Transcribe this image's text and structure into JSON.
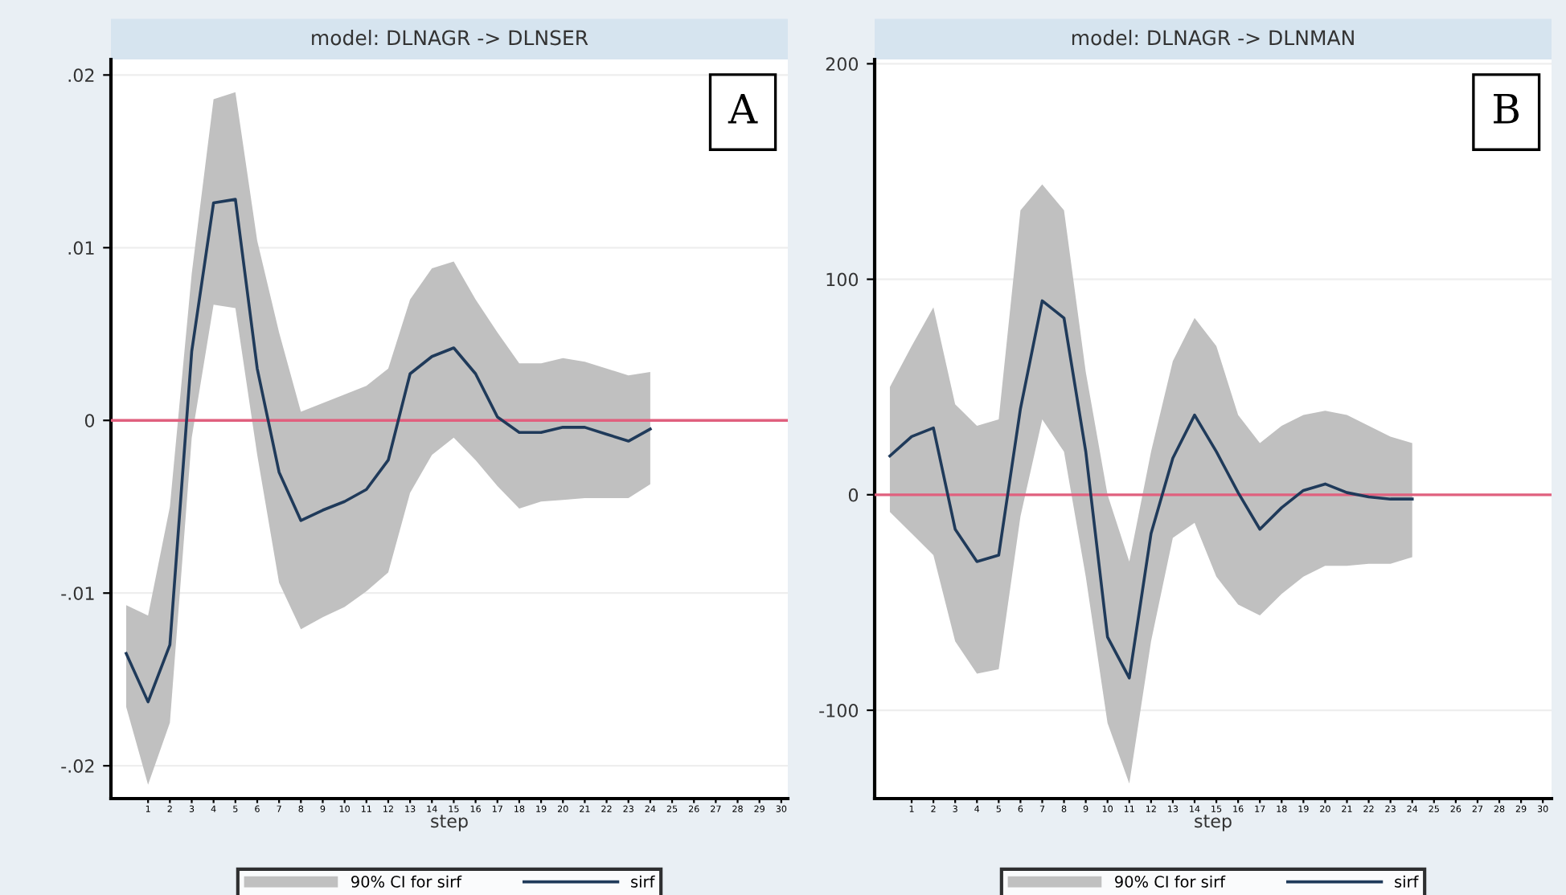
{
  "chart_data": [
    {
      "type": "line",
      "title": "model: DLNAGR -> DLNSER",
      "xlabel": "step",
      "annotations": [
        "A",
        "90% CI for sirf"
      ],
      "x": [
        0,
        1,
        2,
        3,
        4,
        5,
        6,
        7,
        8,
        9,
        10,
        11,
        12,
        13,
        14,
        15,
        16,
        17,
        18,
        19,
        20,
        21,
        22,
        23,
        24
      ],
      "series": [
        {
          "name": "sirf",
          "color": "#1f3a5a",
          "values": [
            -0.0135,
            -0.0163,
            -0.013,
            0.004,
            0.0126,
            0.0128,
            0.003,
            -0.003,
            -0.0058,
            -0.0052,
            -0.0047,
            -0.004,
            -0.0023,
            0.0027,
            0.0037,
            0.0042,
            0.0027,
            0.0002,
            -0.0007,
            -0.0007,
            -0.0004,
            -0.0004,
            -0.0008,
            -0.0012,
            -0.0005
          ],
          "upper": [
            -0.0107,
            -0.0113,
            -0.005,
            0.0085,
            0.0186,
            0.019,
            0.0104,
            0.0051,
            0.0005,
            0.001,
            0.0015,
            0.002,
            0.003,
            0.007,
            0.0088,
            0.0092,
            0.007,
            0.0051,
            0.0033,
            0.0033,
            0.0036,
            0.0034,
            0.003,
            0.0026,
            0.0028
          ],
          "lower": [
            -0.0166,
            -0.0211,
            -0.0175,
            -0.001,
            0.0067,
            0.0065,
            -0.002,
            -0.0094,
            -0.0121,
            -0.0114,
            -0.0108,
            -0.0099,
            -0.0088,
            -0.0042,
            -0.002,
            -0.001,
            -0.0023,
            -0.0038,
            -0.0051,
            -0.0047,
            -0.0046,
            -0.0045,
            -0.0045,
            -0.0045,
            -0.0037
          ]
        }
      ],
      "xlim": [
        -0.7,
        30.3
      ],
      "xticks": [
        1,
        2,
        3,
        4,
        5,
        6,
        7,
        8,
        9,
        10,
        11,
        12,
        13,
        14,
        15,
        16,
        17,
        18,
        19,
        20,
        21,
        22,
        23,
        24,
        25,
        26,
        27,
        28,
        29,
        30
      ],
      "ylim": [
        -0.0219,
        0.0209
      ],
      "yticks": [
        {
          "value": -0.02,
          "label": "-.02"
        },
        {
          "value": -0.01,
          "label": "-.01"
        },
        0,
        {
          "value": 0.01,
          "label": ".01"
        },
        {
          "value": 0.02,
          "label": ".02"
        }
      ],
      "ref_lines": [
        {
          "axis": "y",
          "value": 0,
          "color": "#e0607e"
        }
      ],
      "grid": "y",
      "legend": "bottom"
    },
    {
      "type": "line",
      "title": "model: DLNAGR -> DLNMAN",
      "xlabel": "step",
      "annotations": [
        "B",
        "90% CI for sirf"
      ],
      "x": [
        0,
        1,
        2,
        3,
        4,
        5,
        6,
        7,
        8,
        9,
        10,
        11,
        12,
        13,
        14,
        15,
        16,
        17,
        18,
        19,
        20,
        21,
        22,
        23,
        24
      ],
      "series": [
        {
          "name": "sirf",
          "color": "#1f3a5a",
          "values": [
            18,
            27,
            31,
            -16,
            -31,
            -28,
            40,
            90,
            82,
            20,
            -66,
            -85,
            -18,
            17,
            37,
            20,
            1,
            -16,
            -6,
            2,
            5,
            1,
            -1,
            -2,
            -2
          ],
          "upper": [
            50,
            69,
            87,
            42,
            32,
            35,
            132,
            144,
            132,
            57,
            0,
            -31,
            20,
            62,
            82,
            69,
            37,
            24,
            32,
            37,
            39,
            37,
            32,
            27,
            24
          ],
          "lower": [
            -8,
            -18,
            -28,
            -68,
            -83,
            -81,
            -10,
            35,
            20,
            -38,
            -106,
            -134,
            -68,
            -20,
            -13,
            -38,
            -51,
            -56,
            -46,
            -38,
            -33,
            -33,
            -32,
            -32,
            -29
          ]
        }
      ],
      "xlim": [
        -0.7,
        30.4
      ],
      "xticks": [
        1,
        2,
        3,
        4,
        5,
        6,
        7,
        8,
        9,
        10,
        11,
        12,
        13,
        14,
        15,
        16,
        17,
        18,
        19,
        20,
        21,
        22,
        23,
        24,
        25,
        26,
        27,
        28,
        29,
        30
      ],
      "ylim": [
        -141,
        202
      ],
      "yticks": [
        {
          "value": -100,
          "label": "-100"
        },
        0,
        100,
        200
      ],
      "ref_lines": [
        {
          "axis": "y",
          "value": 0,
          "color": "#e0607e"
        }
      ],
      "grid": "y",
      "legend": "bottom"
    }
  ]
}
